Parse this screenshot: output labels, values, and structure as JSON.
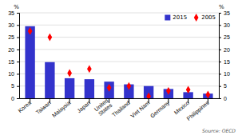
{
  "chart_data": {
    "type": "bar",
    "categories": [
      "Korea",
      "Taiwan",
      "Malaysia",
      "Japan",
      "United\nStates",
      "Thailand",
      "Viet Nam",
      "Germany",
      "Mexico",
      "Philippines"
    ],
    "series": [
      {
        "name": "2015",
        "type": "bar",
        "color": "#3333cc",
        "values": [
          29.5,
          14.8,
          8.2,
          7.8,
          6.8,
          5.7,
          5.0,
          3.8,
          2.5,
          1.9
        ]
      },
      {
        "name": "2005",
        "type": "scatter",
        "marker": "diamond",
        "color": "#ff0000",
        "values": [
          27.5,
          25.0,
          10.3,
          12.0,
          4.3,
          5.0,
          0.8,
          3.0,
          3.5,
          1.5
        ]
      }
    ],
    "ylim": [
      0,
      35
    ],
    "yticks": [
      0,
      5,
      10,
      15,
      20,
      25,
      30,
      35
    ],
    "y2lim": [
      0,
      35
    ],
    "y2ticks": [
      0,
      5,
      10,
      15,
      20,
      25,
      30,
      35
    ],
    "ylabel": "%",
    "y2label": "%",
    "grid": true,
    "legend": "upper right",
    "annotations": [
      "Source: OECD"
    ]
  }
}
